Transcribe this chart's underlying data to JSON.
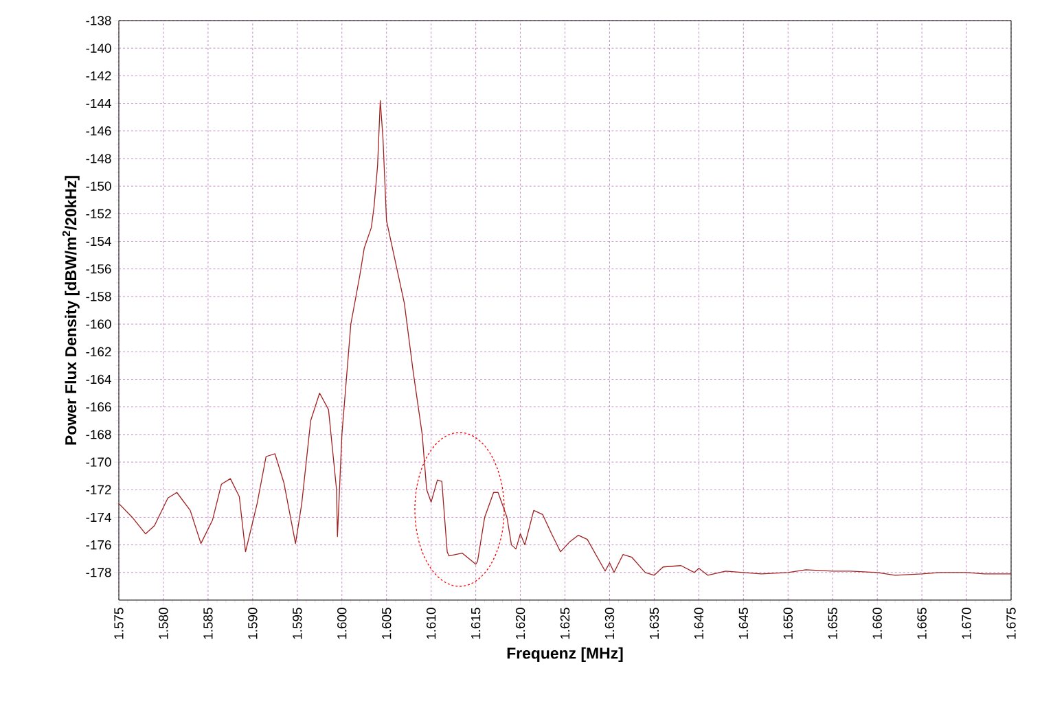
{
  "chart_data": {
    "type": "line",
    "xlabel": "Frequenz [MHz]",
    "ylabel": "Power Flux Density [dBW/m$^{2}$/20kHz]",
    "xlim": [
      1.575,
      1.675
    ],
    "ylim": [
      -180,
      -138
    ],
    "xticks": [
      1.575,
      {
        "value": 1.58,
        "label": "1.580"
      },
      1.585,
      {
        "value": 1.59,
        "label": "1.590"
      },
      1.595,
      {
        "value": 1.6,
        "label": "1.600"
      },
      1.605,
      {
        "value": 1.61,
        "label": "1.610"
      },
      1.615,
      {
        "value": 1.62,
        "label": "1.620"
      },
      1.625,
      {
        "value": 1.63,
        "label": "1.630"
      },
      1.635,
      {
        "value": 1.64,
        "label": "1.640"
      },
      1.645,
      {
        "value": 1.65,
        "label": "1.650"
      },
      1.655,
      {
        "value": 1.66,
        "label": "1.660"
      },
      1.665,
      {
        "value": 1.67,
        "label": "1.670"
      },
      1.675
    ],
    "yticks": [
      -138,
      -140,
      -142,
      -144,
      -146,
      -148,
      -150,
      -152,
      -154,
      -156,
      -158,
      -160,
      -162,
      -164,
      -166,
      -168,
      -170,
      -172,
      -174,
      -176,
      -178
    ],
    "grid": true,
    "marker": "none",
    "line_style": "solid",
    "series": [
      {
        "color": "#a02020",
        "x": [
          1.575,
          1.5765,
          1.578,
          1.579,
          1.5805,
          1.5815,
          1.583,
          1.5842,
          1.5855,
          1.5865,
          1.5875,
          1.5885,
          1.5892,
          1.5905,
          1.5915,
          1.5925,
          1.5935,
          1.5948,
          1.5955,
          1.5965,
          1.5975,
          1.5985,
          1.5994,
          1.5995,
          1.6,
          1.601,
          1.602,
          1.6025,
          1.6033,
          1.6036,
          1.604,
          1.6043,
          1.6046,
          1.605,
          1.606,
          1.607,
          1.608,
          1.609,
          1.6095,
          1.61,
          1.6107,
          1.6112,
          1.6118,
          1.612,
          1.6135,
          1.615,
          1.6152,
          1.616,
          1.617,
          1.6175,
          1.6185,
          1.619,
          1.6195,
          1.62,
          1.6205,
          1.6215,
          1.6225,
          1.6235,
          1.6245,
          1.6255,
          1.6265,
          1.6275,
          1.6295,
          1.63,
          1.6305,
          1.6315,
          1.6325,
          1.634,
          1.635,
          1.636,
          1.638,
          1.6395,
          1.64,
          1.641,
          1.643,
          1.645,
          1.647,
          1.65,
          1.652,
          1.655,
          1.657,
          1.66,
          1.662,
          1.665,
          1.667,
          1.67,
          1.672,
          1.675
        ],
        "values": [
          -173.0,
          -174.0,
          -175.2,
          -174.6,
          -172.6,
          -172.2,
          -173.5,
          -175.9,
          -174.2,
          -171.6,
          -171.2,
          -172.5,
          -176.5,
          -173.0,
          -169.6,
          -169.4,
          -171.5,
          -175.9,
          -173.0,
          -167.0,
          -165.0,
          -166.2,
          -172.0,
          -175.4,
          -168.0,
          -160.0,
          -156.5,
          -154.5,
          -153.0,
          -151.5,
          -148.5,
          -143.8,
          -146.5,
          -152.5,
          -155.5,
          -158.5,
          -163.5,
          -168.0,
          -172.0,
          -172.9,
          -171.3,
          -171.4,
          -176.5,
          -176.8,
          -176.6,
          -177.4,
          -177.2,
          -174.0,
          -172.2,
          -172.2,
          -174.0,
          -176.0,
          -176.3,
          -175.2,
          -176.0,
          -173.5,
          -173.8,
          -175.2,
          -176.5,
          -175.8,
          -175.3,
          -175.6,
          -177.9,
          -177.3,
          -178.0,
          -176.7,
          -176.9,
          -178.0,
          -178.2,
          -177.6,
          -177.5,
          -178.0,
          -177.7,
          -178.2,
          -177.9,
          -178.0,
          -178.1,
          -178.0,
          -177.8,
          -177.9,
          -177.9,
          -178.0,
          -178.2,
          -178.1,
          -178.0,
          -178.0,
          -178.1,
          -178.1
        ]
      }
    ]
  }
}
